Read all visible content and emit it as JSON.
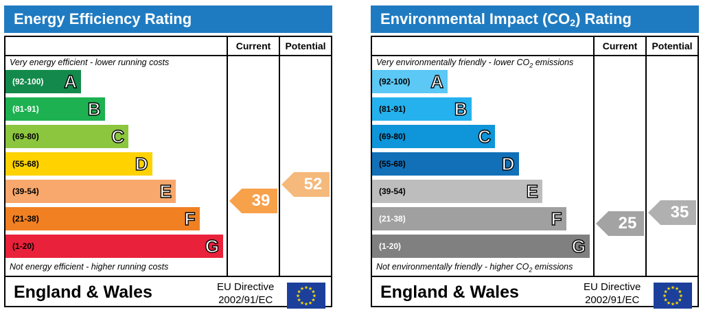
{
  "panels": [
    {
      "title": "Energy Efficiency Rating",
      "col_current": "Current",
      "col_potential": "Potential",
      "note_top": "Very energy efficient - lower running costs",
      "note_bottom": "Not energy efficient - higher running costs",
      "footer_region": "England & Wales",
      "directive_line1": "EU Directive",
      "directive_line2": "2002/91/EC",
      "current_value": "39",
      "potential_value": "52",
      "current_color": "#f8a14b",
      "potential_color": "#f5b97c"
    },
    {
      "title_main": "Environmental Impact (CO",
      "title_sub": "2",
      "title_end": ") Rating",
      "col_current": "Current",
      "col_potential": "Potential",
      "note_top_main": "Very environmentally friendly - lower CO",
      "note_top_sub": "2",
      "note_top_end": " emissions",
      "note_bottom_main": "Not environmentally friendly - higher CO",
      "note_bottom_sub": "2",
      "note_bottom_end": " emissions",
      "footer_region": "England & Wales",
      "directive_line1": "EU Directive",
      "directive_line2": "2002/91/EC",
      "current_value": "25",
      "potential_value": "35",
      "current_color": "#a3a3a3",
      "potential_color": "#b0b0b0"
    }
  ],
  "chart_data": [
    {
      "type": "bar",
      "title": "Energy Efficiency Rating",
      "categories": [
        "(92-100)",
        "(81-91)",
        "(69-80)",
        "(55-68)",
        "(39-54)",
        "(21-38)",
        "(1-20)"
      ],
      "letters": [
        "A",
        "B",
        "C",
        "D",
        "E",
        "F",
        "G"
      ],
      "colors": [
        "#138a4b",
        "#1db151",
        "#8cc63f",
        "#ffd200",
        "#f8a86c",
        "#f08022",
        "#e9213a"
      ],
      "range_text_colors": [
        "#ffffff",
        "#ffffff",
        "#000000",
        "#000000",
        "#000000",
        "#000000",
        "#000000"
      ],
      "current": 39,
      "potential": 52
    },
    {
      "type": "bar",
      "title": "Environmental Impact (CO2) Rating",
      "categories": [
        "(92-100)",
        "(81-91)",
        "(69-80)",
        "(55-68)",
        "(39-54)",
        "(21-38)",
        "(1-20)"
      ],
      "letters": [
        "A",
        "B",
        "C",
        "D",
        "E",
        "F",
        "G"
      ],
      "colors": [
        "#5bc8f5",
        "#25b1ee",
        "#0f95d9",
        "#1170b8",
        "#bdbdbd",
        "#a0a0a0",
        "#808080"
      ],
      "range_text_colors": [
        "#000000",
        "#000000",
        "#000000",
        "#000000",
        "#000000",
        "#ffffff",
        "#ffffff"
      ],
      "current": 25,
      "potential": 35
    }
  ]
}
